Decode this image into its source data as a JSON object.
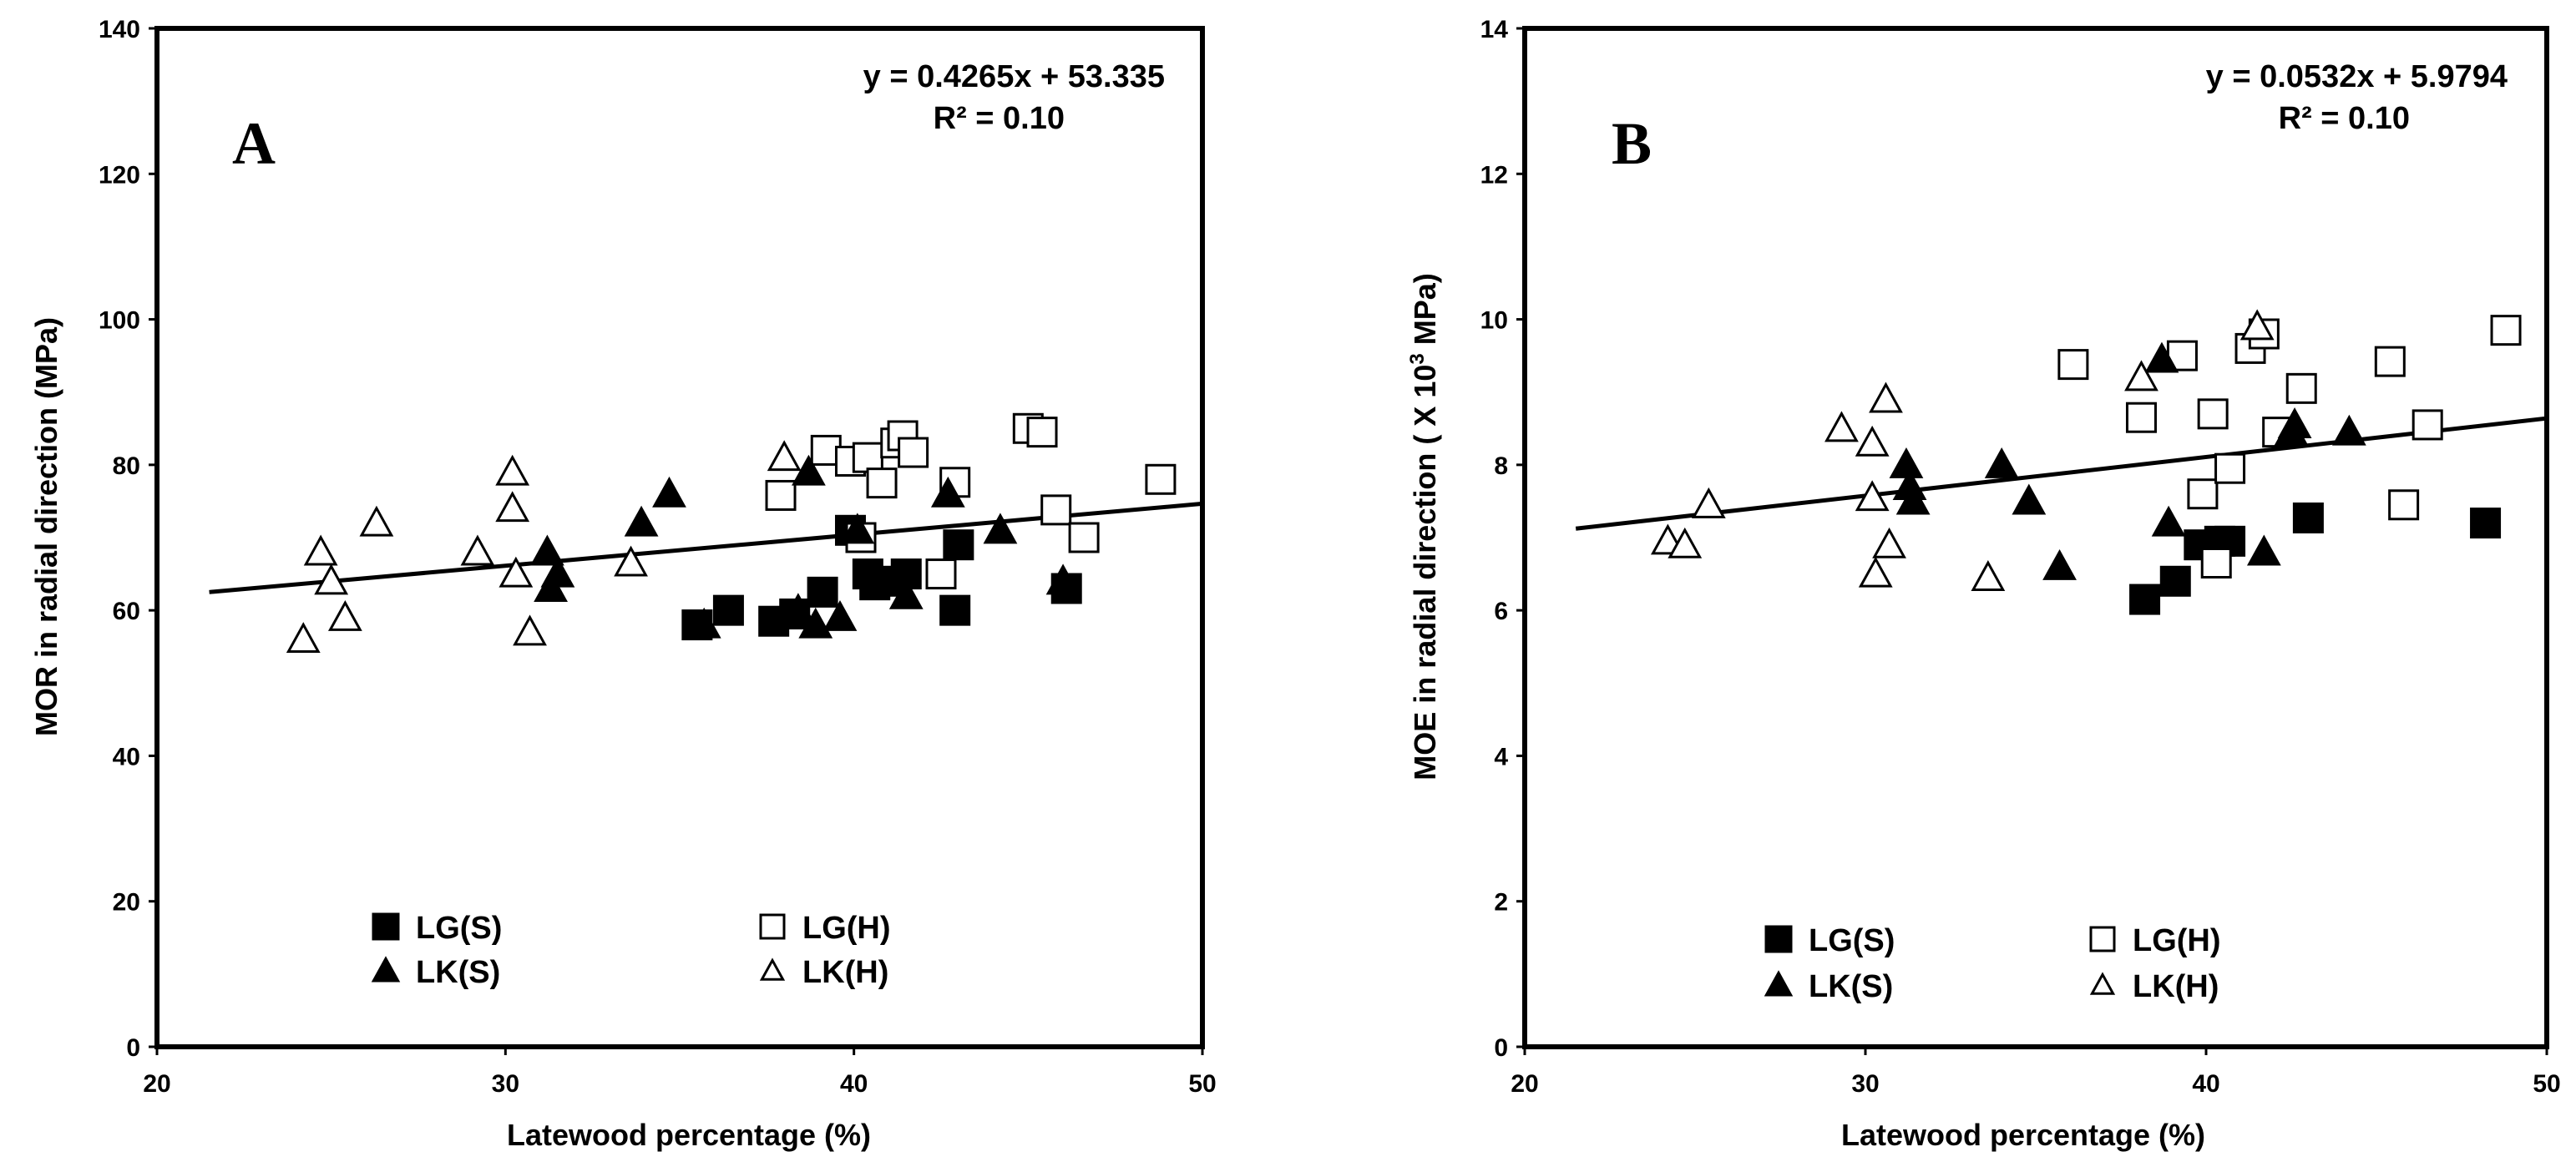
{
  "chart_data": [
    {
      "type": "scatter",
      "panel_label": "A",
      "xlabel": "Latewood percentage (%)",
      "ylabel": "MOR in radial direction (MPa)",
      "xlim": [
        20,
        50
      ],
      "ylim": [
        0,
        140
      ],
      "xticks": [
        "20",
        "30",
        "40",
        "50"
      ],
      "yticks": [
        "0",
        "20",
        "40",
        "60",
        "80",
        "100",
        "120",
        "140"
      ],
      "equation": "y = 0.4265x + 53.335",
      "r_squared": "R² = 0.10",
      "trendline": {
        "slope": 0.4265,
        "intercept": 53.335,
        "x_range": [
          21.5,
          50
        ]
      },
      "legend_position": "bottom",
      "series": [
        {
          "name": "LG(S)",
          "marker": "square-filled",
          "points": [
            [
              35.5,
              58
            ],
            [
              36.4,
              60
            ],
            [
              37.7,
              58.5
            ],
            [
              38.3,
              59.5
            ],
            [
              39.1,
              62.5
            ],
            [
              39.9,
              71
            ],
            [
              40.4,
              65
            ],
            [
              40.6,
              63.5
            ],
            [
              41.0,
              64
            ],
            [
              41.5,
              65
            ],
            [
              42.9,
              60
            ],
            [
              43.0,
              69
            ],
            [
              46.1,
              63
            ]
          ]
        },
        {
          "name": "LG(H)",
          "marker": "square-open",
          "points": [
            [
              37.9,
              75.8
            ],
            [
              39.2,
              82
            ],
            [
              39.9,
              80.5
            ],
            [
              40.2,
              70
            ],
            [
              40.4,
              81
            ],
            [
              40.8,
              77.5
            ],
            [
              41.2,
              83
            ],
            [
              41.4,
              84
            ],
            [
              41.7,
              81.7
            ],
            [
              42.5,
              65
            ],
            [
              42.9,
              77.6
            ],
            [
              45.0,
              85
            ],
            [
              45.4,
              84.5
            ],
            [
              45.8,
              73.8
            ],
            [
              46.6,
              70
            ],
            [
              48.8,
              78
            ]
          ]
        },
        {
          "name": "LK(S)",
          "marker": "triangle-filled",
          "points": [
            [
              31.2,
              68
            ],
            [
              31.3,
              63
            ],
            [
              31.5,
              65
            ],
            [
              33.9,
              72
            ],
            [
              34.7,
              76
            ],
            [
              35.7,
              58
            ],
            [
              38.4,
              60
            ],
            [
              38.7,
              79
            ],
            [
              38.9,
              58
            ],
            [
              39.6,
              59
            ],
            [
              40.1,
              71
            ],
            [
              41.5,
              62
            ],
            [
              42.7,
              76
            ],
            [
              44.2,
              71
            ],
            [
              46.0,
              64
            ]
          ]
        },
        {
          "name": "LK(H)",
          "marker": "triangle-open",
          "points": [
            [
              24.2,
              56
            ],
            [
              24.7,
              68
            ],
            [
              25.0,
              64
            ],
            [
              25.4,
              59
            ],
            [
              26.3,
              72
            ],
            [
              29.2,
              68
            ],
            [
              30.2,
              79
            ],
            [
              30.2,
              74
            ],
            [
              30.3,
              65
            ],
            [
              30.7,
              57
            ],
            [
              33.6,
              66.5
            ],
            [
              38.0,
              81
            ]
          ]
        }
      ]
    },
    {
      "type": "scatter",
      "panel_label": "B",
      "xlabel": "Latewood percentage (%)",
      "ylabel_prefix": "MOE in radial direction ( X 10",
      "ylabel_sup": "3",
      "ylabel_suffix": " MPa)",
      "xlim": [
        20,
        50
      ],
      "ylim": [
        0,
        14
      ],
      "xticks": [
        "20",
        "30",
        "40",
        "50"
      ],
      "yticks": [
        "0",
        "2",
        "4",
        "6",
        "8",
        "10",
        "12",
        "14"
      ],
      "equation": "y = 0.0532x + 5.9794",
      "r_squared": "R² = 0.10",
      "trendline": {
        "slope": 0.0532,
        "intercept": 5.9794,
        "x_range": [
          21.5,
          50
        ]
      },
      "legend_position": "bottom",
      "series": [
        {
          "name": "LG(S)",
          "marker": "square-filled",
          "points": [
            [
              38.2,
              6.15
            ],
            [
              39.1,
              6.4
            ],
            [
              39.8,
              6.9
            ],
            [
              40.4,
              6.95
            ],
            [
              40.7,
              6.95
            ],
            [
              43.0,
              7.27
            ],
            [
              48.2,
              7.2
            ]
          ]
        },
        {
          "name": "LG(H)",
          "marker": "square-open",
          "points": [
            [
              36.1,
              9.38
            ],
            [
              38.1,
              8.65
            ],
            [
              39.3,
              9.5
            ],
            [
              39.9,
              7.6
            ],
            [
              40.2,
              8.7
            ],
            [
              40.3,
              6.65
            ],
            [
              40.7,
              7.95
            ],
            [
              41.3,
              9.6
            ],
            [
              41.7,
              9.8
            ],
            [
              42.1,
              8.45
            ],
            [
              42.8,
              9.05
            ],
            [
              45.4,
              9.42
            ],
            [
              45.8,
              7.45
            ],
            [
              46.5,
              8.55
            ],
            [
              48.8,
              9.85
            ]
          ]
        },
        {
          "name": "LK(S)",
          "marker": "triangle-filled",
          "points": [
            [
              31.2,
              8.0
            ],
            [
              31.3,
              7.7
            ],
            [
              31.4,
              7.5
            ],
            [
              34.0,
              8.0
            ],
            [
              34.8,
              7.5
            ],
            [
              35.7,
              6.6
            ],
            [
              38.7,
              9.45
            ],
            [
              38.9,
              7.2
            ],
            [
              41.7,
              6.8
            ],
            [
              42.5,
              8.45
            ],
            [
              42.6,
              8.55
            ],
            [
              44.2,
              8.45
            ]
          ]
        },
        {
          "name": "LK(H)",
          "marker": "triangle-open",
          "points": [
            [
              24.2,
              6.95
            ],
            [
              24.7,
              6.9
            ],
            [
              25.4,
              7.45
            ],
            [
              29.3,
              8.5
            ],
            [
              30.2,
              8.3
            ],
            [
              30.2,
              7.55
            ],
            [
              30.3,
              6.5
            ],
            [
              30.6,
              8.9
            ],
            [
              30.7,
              6.9
            ],
            [
              33.6,
              6.45
            ],
            [
              38.1,
              9.2
            ],
            [
              41.5,
              9.9
            ]
          ]
        }
      ]
    }
  ]
}
